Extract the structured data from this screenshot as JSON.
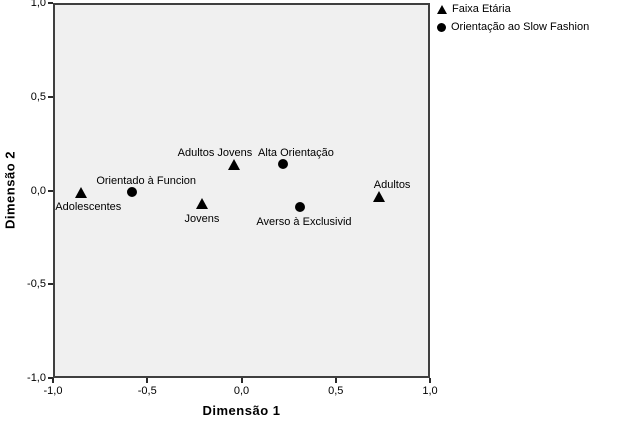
{
  "chart_data": {
    "type": "scatter",
    "title": "",
    "xlabel": "Dimensão 1",
    "ylabel": "Dimensão 2",
    "xlim": [
      -1.0,
      1.0
    ],
    "ylim": [
      -1.0,
      1.0
    ],
    "grid": false,
    "legend_position": "top-right-outside",
    "x_ticks": [
      {
        "value": -1.0,
        "label": "-1,0"
      },
      {
        "value": -0.5,
        "label": "-0,5"
      },
      {
        "value": 0.0,
        "label": "0,0"
      },
      {
        "value": 0.5,
        "label": "0,5"
      },
      {
        "value": 1.0,
        "label": "1,0"
      }
    ],
    "y_ticks": [
      {
        "value": -1.0,
        "label": "-1,0"
      },
      {
        "value": -0.5,
        "label": "-0,5"
      },
      {
        "value": 0.0,
        "label": "0,0"
      },
      {
        "value": 0.5,
        "label": "0,5"
      },
      {
        "value": 1.0,
        "label": "1,0"
      }
    ],
    "series": [
      {
        "name": "Faixa Etária",
        "marker": "triangle",
        "points": [
          {
            "label": "Adolescentes",
            "x": -0.85,
            "y": -0.01,
            "label_pos": "below",
            "label_dx": 7
          },
          {
            "label": "Jovens",
            "x": -0.21,
            "y": -0.07,
            "label_pos": "below",
            "label_dx": 0
          },
          {
            "label": "Adultos Jovens",
            "x": -0.04,
            "y": 0.14,
            "label_pos": "above",
            "label_dx": -19
          },
          {
            "label": "Adultos",
            "x": 0.73,
            "y": -0.03,
            "label_pos": "above",
            "label_dx": 13
          }
        ]
      },
      {
        "name": "Orientação ao Slow Fashion",
        "marker": "circle",
        "points": [
          {
            "label": "Orientado à Funcion",
            "x": -0.58,
            "y": -0.01,
            "label_pos": "above",
            "label_dx": 14
          },
          {
            "label": "Alta Orientação",
            "x": 0.22,
            "y": 0.14,
            "label_pos": "above",
            "label_dx": 13
          },
          {
            "label": "Averso à Exclusivid",
            "x": 0.31,
            "y": -0.09,
            "label_pos": "below",
            "label_dx": 4
          }
        ]
      }
    ],
    "colors": {
      "marker": "#000000",
      "plot_background": "#f0f0f0",
      "plot_border": "#3f3f3f",
      "text": "#000000",
      "page_background": "#ffffff"
    }
  }
}
